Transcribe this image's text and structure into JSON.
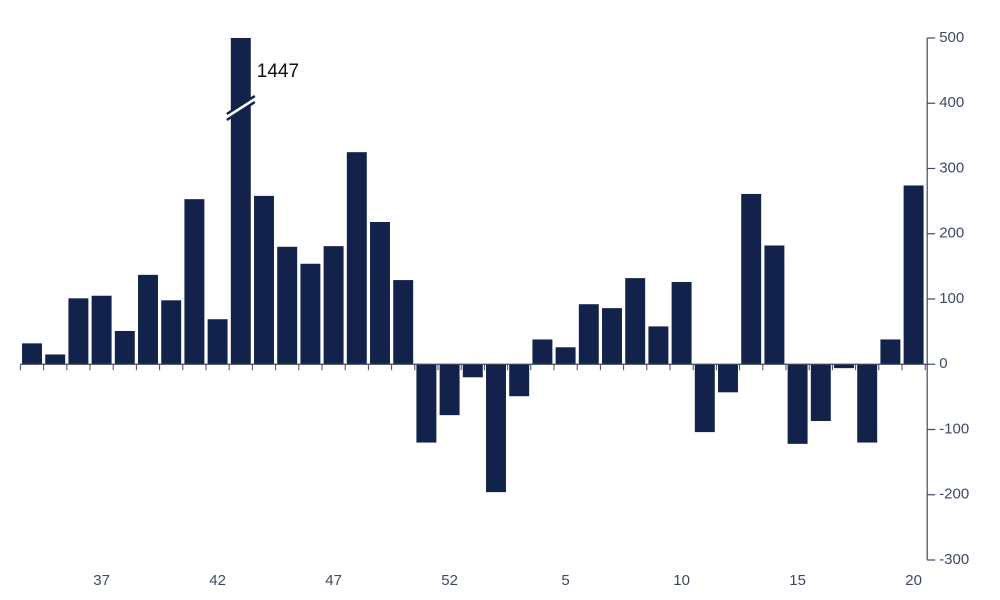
{
  "chart_data": {
    "type": "bar",
    "categories": [
      null,
      null,
      null,
      "37",
      null,
      null,
      null,
      null,
      "42",
      null,
      null,
      null,
      null,
      "47",
      null,
      null,
      null,
      null,
      "52",
      null,
      null,
      null,
      null,
      "5",
      null,
      null,
      null,
      null,
      "10",
      null,
      null,
      null,
      null,
      "15",
      null,
      null,
      null,
      null,
      "20"
    ],
    "values": [
      32,
      15,
      101,
      105,
      51,
      137,
      98,
      253,
      69,
      1447,
      258,
      180,
      154,
      181,
      325,
      218,
      129,
      -120,
      -78,
      -20,
      -196,
      -49,
      38,
      26,
      92,
      86,
      132,
      58,
      126,
      -104,
      -43,
      261,
      182,
      -122,
      -87,
      -6,
      -120,
      38,
      274
    ],
    "color": "#13224a",
    "ylim": [
      -300,
      500
    ],
    "yticks": [
      -300,
      -200,
      -100,
      0,
      100,
      200,
      300,
      400,
      500
    ],
    "axis_side": "right"
  }
}
